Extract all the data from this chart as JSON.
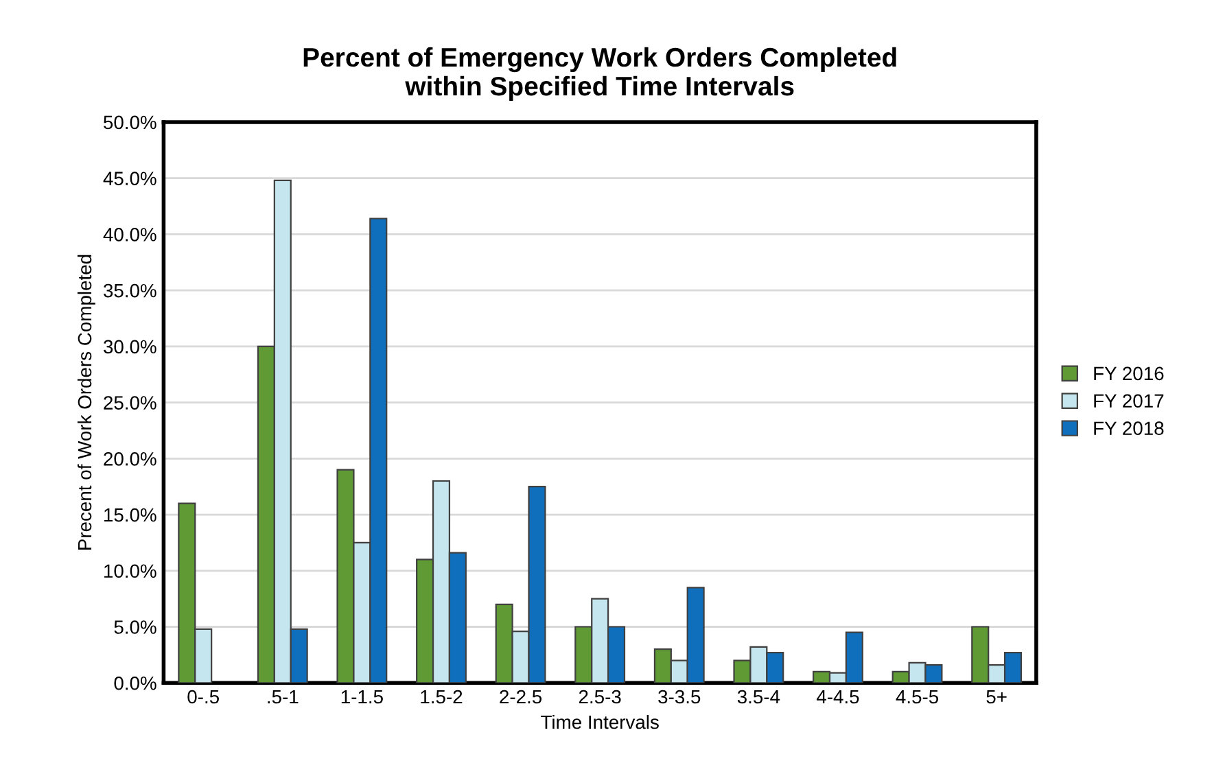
{
  "chart_data": {
    "type": "bar",
    "title": "Percent of Emergency Work Orders Completed\nwithin Specified Time Intervals",
    "xlabel": "Time Intervals",
    "ylabel": "Precent of Work Orders Completed",
    "categories": [
      "0-.5",
      ".5-1",
      "1-1.5",
      "1.5-2",
      "2-2.5",
      "2.5-3",
      "3-3.5",
      "3.5-4",
      "4-4.5",
      "4.5-5",
      "5+"
    ],
    "series": [
      {
        "name": "FY 2016",
        "color": "#5f9a35",
        "values": [
          16,
          30,
          19,
          11,
          7,
          5,
          3,
          2,
          1,
          1,
          5
        ]
      },
      {
        "name": "FY 2017",
        "color": "#c5e6ee",
        "values": [
          4.8,
          44.8,
          12.5,
          18,
          4.6,
          7.5,
          2,
          3.2,
          0.9,
          1.8,
          1.6
        ]
      },
      {
        "name": "FY 2018",
        "color": "#0f6fbd",
        "values": [
          null,
          4.8,
          41.4,
          11.6,
          17.5,
          5,
          8.5,
          2.7,
          4.5,
          1.6,
          2.7
        ]
      }
    ],
    "ylim": [
      0,
      50
    ],
    "yticks": [
      {
        "value": 0,
        "label": "0.0%"
      },
      {
        "value": 5,
        "label": "5.0%"
      },
      {
        "value": 10,
        "label": "10.0%"
      },
      {
        "value": 15,
        "label": "15.0%"
      },
      {
        "value": 20,
        "label": "20.0%"
      },
      {
        "value": 25,
        "label": "25.0%"
      },
      {
        "value": 30,
        "label": "30.0%"
      },
      {
        "value": 35,
        "label": "35.0%"
      },
      {
        "value": 40,
        "label": "40.0%"
      },
      {
        "value": 45,
        "label": "45.0%"
      },
      {
        "value": 50,
        "label": "50.0%"
      }
    ],
    "grid": "y",
    "legend": "right"
  }
}
